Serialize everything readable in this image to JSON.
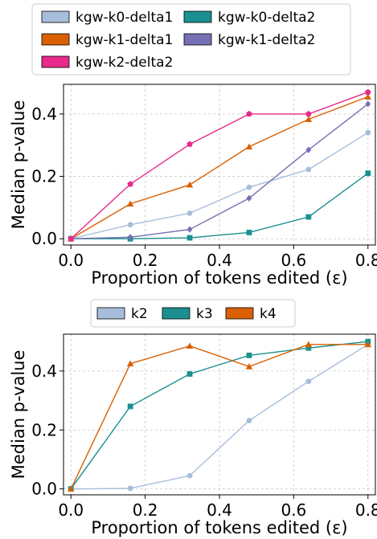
{
  "chart_data": [
    {
      "type": "line",
      "title": "",
      "xlabel": "Proportion of tokens edited (ε)",
      "ylabel": "Median p-value",
      "xlim": [
        -0.02,
        0.82
      ],
      "ylim": [
        -0.02,
        0.495
      ],
      "xticks": [
        0.0,
        0.2,
        0.4,
        0.6,
        0.8
      ],
      "xtick_labels": [
        "0.0",
        "0.2",
        "0.4",
        "0.6",
        "0.8"
      ],
      "yticks": [
        0.0,
        0.2,
        0.4
      ],
      "ytick_labels": [
        "0.0",
        "0.2",
        "0.4"
      ],
      "grid": true,
      "legend_placement": "top-center, outside",
      "x": [
        0.0,
        0.16,
        0.32,
        0.48,
        0.64,
        0.8
      ],
      "series": [
        {
          "name": "kgw-k0-delta1",
          "values": [
            0.0,
            0.045,
            0.082,
            0.165,
            0.222,
            0.34
          ],
          "color": "#a6bddb",
          "marker": "circle"
        },
        {
          "name": "kgw-k0-delta2",
          "values": [
            0.0,
            0.0,
            0.003,
            0.02,
            0.07,
            0.21
          ],
          "color": "#1a9090",
          "marker": "square"
        },
        {
          "name": "kgw-k1-delta1",
          "values": [
            0.0,
            0.112,
            0.173,
            0.295,
            0.383,
            0.455
          ],
          "color": "#d95f02",
          "marker": "triangle"
        },
        {
          "name": "kgw-k1-delta2",
          "values": [
            0.0,
            0.005,
            0.03,
            0.13,
            0.285,
            0.432
          ],
          "color": "#7570b3",
          "marker": "diamond"
        },
        {
          "name": "kgw-k2-delta2",
          "values": [
            0.0,
            0.175,
            0.303,
            0.4,
            0.4,
            0.47
          ],
          "color": "#e7298a",
          "marker": "pentagon"
        }
      ]
    },
    {
      "type": "line",
      "title": "",
      "xlabel": "Proportion of tokens edited (ε)",
      "ylabel": "Median p-value",
      "xlim": [
        -0.02,
        0.82
      ],
      "ylim": [
        -0.02,
        0.525
      ],
      "xticks": [
        0.0,
        0.2,
        0.4,
        0.6,
        0.8
      ],
      "xtick_labels": [
        "0.0",
        "0.2",
        "0.4",
        "0.6",
        "0.8"
      ],
      "yticks": [
        0.0,
        0.2,
        0.4
      ],
      "ytick_labels": [
        "0.0",
        "0.2",
        "0.4"
      ],
      "grid": true,
      "legend_placement": "top-center, outside",
      "x": [
        0.0,
        0.16,
        0.32,
        0.48,
        0.64,
        0.8
      ],
      "series": [
        {
          "name": "k2",
          "values": [
            0.0,
            0.002,
            0.045,
            0.232,
            0.365,
            0.49
          ],
          "color": "#a6bddb",
          "marker": "circle"
        },
        {
          "name": "k3",
          "values": [
            0.0,
            0.28,
            0.39,
            0.453,
            0.478,
            0.5
          ],
          "color": "#1a9090",
          "marker": "square"
        },
        {
          "name": "k4",
          "values": [
            0.0,
            0.425,
            0.485,
            0.415,
            0.49,
            0.49
          ],
          "color": "#d95f02",
          "marker": "triangle"
        }
      ]
    }
  ]
}
